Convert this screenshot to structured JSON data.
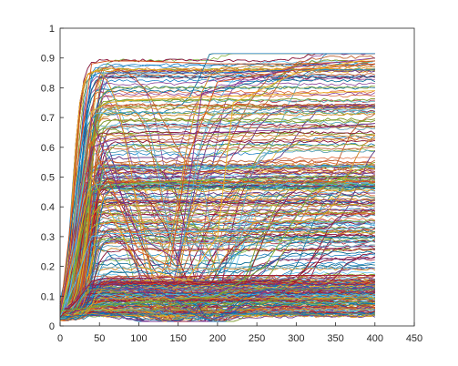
{
  "chart_data": {
    "type": "line",
    "title": "",
    "xlabel": "",
    "ylabel": "",
    "xlim": [
      0,
      450
    ],
    "ylim": [
      0,
      1
    ],
    "xticks": [
      0,
      50,
      100,
      150,
      200,
      250,
      300,
      350,
      400,
      450
    ],
    "yticks": [
      0,
      0.1,
      0.2,
      0.3,
      0.4,
      0.5,
      0.6,
      0.7,
      0.8,
      0.9,
      1
    ],
    "xtick_labels": [
      "0",
      "50",
      "100",
      "150",
      "200",
      "250",
      "300",
      "350",
      "400",
      "450"
    ],
    "ytick_labels": [
      "0",
      "0.1",
      "0.2",
      "0.3",
      "0.4",
      "0.5",
      "0.6",
      "0.7",
      "0.8",
      "0.9",
      "1"
    ],
    "grid": false,
    "legend": "none",
    "x_range_of_series": [
      0,
      400
    ],
    "series_count_estimate": 1000,
    "palette": [
      "#0072BD",
      "#D95319",
      "#EDB120",
      "#7E2F8E",
      "#77AC30",
      "#4DBEEE",
      "#A2142F"
    ],
    "representative_series": [
      {
        "x": [
          0,
          20,
          40,
          50,
          100,
          200,
          300,
          400
        ],
        "y": [
          0.05,
          0.45,
          0.84,
          0.85,
          0.85,
          0.85,
          0.86,
          0.86
        ]
      },
      {
        "x": [
          0,
          20,
          40,
          60,
          100,
          200,
          300,
          400
        ],
        "y": [
          0.04,
          0.5,
          0.88,
          0.89,
          0.89,
          0.88,
          0.88,
          0.89
        ]
      },
      {
        "x": [
          0,
          20,
          40,
          60,
          100,
          200,
          300,
          400
        ],
        "y": [
          0.04,
          0.35,
          0.72,
          0.75,
          0.76,
          0.77,
          0.78,
          0.79
        ]
      },
      {
        "x": [
          0,
          20,
          40,
          60,
          100,
          200,
          300,
          400
        ],
        "y": [
          0.04,
          0.3,
          0.6,
          0.62,
          0.64,
          0.65,
          0.66,
          0.68
        ]
      },
      {
        "x": [
          0,
          20,
          40,
          60,
          100,
          200,
          300,
          400
        ],
        "y": [
          0.03,
          0.22,
          0.45,
          0.47,
          0.48,
          0.49,
          0.5,
          0.5
        ]
      },
      {
        "x": [
          0,
          20,
          40,
          60,
          100,
          200,
          300,
          400
        ],
        "y": [
          0.03,
          0.15,
          0.3,
          0.31,
          0.31,
          0.32,
          0.32,
          0.33
        ]
      },
      {
        "x": [
          0,
          20,
          40,
          60,
          100,
          200,
          300,
          400
        ],
        "y": [
          0.03,
          0.08,
          0.15,
          0.16,
          0.16,
          0.17,
          0.17,
          0.17
        ]
      },
      {
        "x": [
          0,
          50,
          100,
          200,
          300,
          400
        ],
        "y": [
          0.03,
          0.04,
          0.04,
          0.04,
          0.04,
          0.04
        ]
      },
      {
        "x": [
          0,
          20,
          40,
          60,
          100,
          140,
          160,
          200,
          300,
          400
        ],
        "y": [
          0.04,
          0.3,
          0.62,
          0.5,
          0.25,
          0.2,
          0.55,
          0.82,
          0.86,
          0.88
        ]
      },
      {
        "x": [
          0,
          20,
          40,
          60,
          100,
          160,
          200,
          220,
          300,
          400
        ],
        "y": [
          0.04,
          0.25,
          0.5,
          0.4,
          0.2,
          0.15,
          0.3,
          0.75,
          0.85,
          0.9
        ]
      },
      {
        "x": [
          0,
          20,
          40,
          60,
          100,
          150,
          180,
          300,
          400
        ],
        "y": [
          0.04,
          0.35,
          0.7,
          0.55,
          0.3,
          0.22,
          0.78,
          0.87,
          0.9
        ]
      },
      {
        "x": [
          0,
          100,
          200,
          260,
          320,
          400
        ],
        "y": [
          0.05,
          0.08,
          0.1,
          0.2,
          0.45,
          0.55
        ]
      }
    ]
  }
}
